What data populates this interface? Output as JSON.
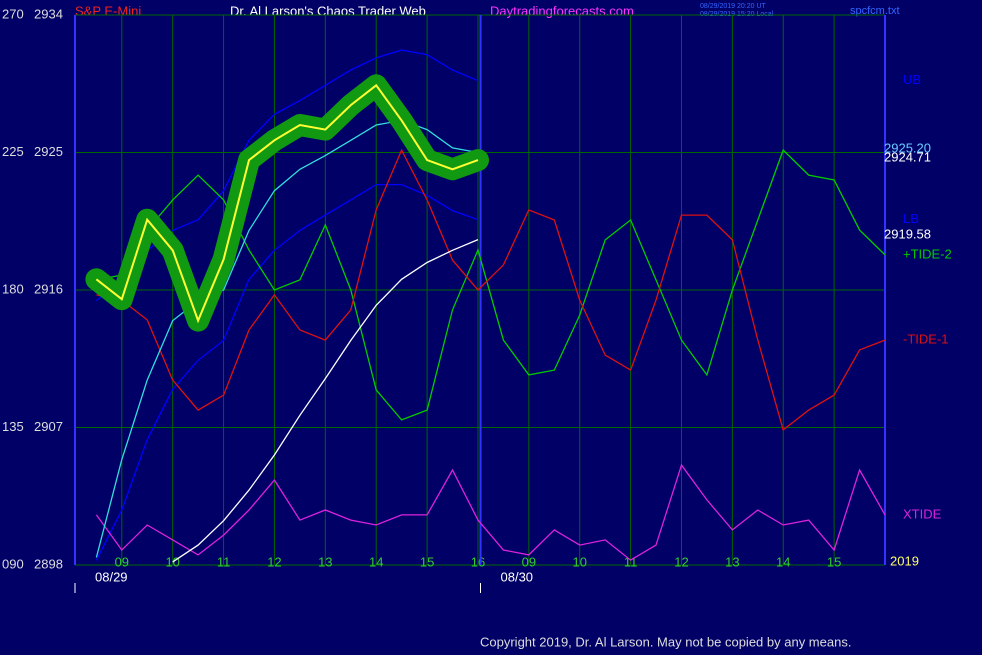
{
  "chart_data": {
    "type": "line",
    "title": "Dr. Al Larson's Chaos Trader Web",
    "subtitle": "S&P E-Mini",
    "site": "Daytradingforecasts.com",
    "timestamps": [
      "08/29/2019 20:20 UT",
      "08/29/2019 15:20 Local"
    ],
    "filename": "spcfcm.txt",
    "copyright": "Copyright 2019, Dr. Al Larson. May not be copied by any means.",
    "x": [
      -0.5,
      0,
      0.5,
      1,
      1.5,
      2,
      2.5,
      3,
      3.5,
      4,
      4.5,
      5,
      5.5,
      6,
      6.5,
      7,
      7.5,
      8,
      8.5,
      9,
      9.5,
      10,
      10.5,
      11,
      11.5,
      12,
      12.5,
      13,
      13.5,
      14,
      14.5,
      15
    ],
    "xlim": [
      -0.92,
      15
    ],
    "xticks": [
      {
        "value": 0,
        "label": "09"
      },
      {
        "value": 1,
        "label": "10"
      },
      {
        "value": 2,
        "label": "11"
      },
      {
        "value": 3,
        "label": "12"
      },
      {
        "value": 4,
        "label": "13"
      },
      {
        "value": 5,
        "label": "14"
      },
      {
        "value": 6,
        "label": "15"
      },
      {
        "value": 7,
        "label": "16"
      },
      {
        "value": 8,
        "label": "09"
      },
      {
        "value": 9,
        "label": "10"
      },
      {
        "value": 10,
        "label": "11"
      },
      {
        "value": 11,
        "label": "12"
      },
      {
        "value": 12,
        "label": "13"
      },
      {
        "value": 13,
        "label": "14"
      },
      {
        "value": 14,
        "label": "15"
      }
    ],
    "x_dates": [
      {
        "value": -0.92,
        "label": "08/29"
      },
      {
        "value": 7.05,
        "label": "08/30"
      }
    ],
    "ylim": [
      2898,
      2934
    ],
    "yticks": [
      2934,
      2925,
      2916,
      2907,
      2898
    ],
    "y2lim": [
      90,
      270
    ],
    "y2ticks": [
      270,
      225,
      180,
      135,
      {
        "value": 90,
        "label": "090"
      }
    ],
    "grid": true,
    "series": [
      {
        "color": "#0000ff",
        "name": "UB",
        "values": [
          2915.3,
          2916.7,
          2918.6,
          2919.9,
          2920.6,
          2922.5,
          2925.8,
          2927.5,
          2928.4,
          2929.4,
          2930.4,
          2931.2,
          2931.7,
          2931.4,
          2930.4,
          2929.7,
          null,
          null,
          null,
          null,
          null,
          null,
          null,
          null,
          null,
          null,
          null,
          null,
          null,
          null,
          null,
          null
        ]
      },
      {
        "color": "#0000ff",
        "name": "LB",
        "values": [
          2898.3,
          2901.6,
          2906.2,
          2909.5,
          2911.4,
          2912.7,
          2916.7,
          2918.6,
          2919.9,
          2920.9,
          2921.9,
          2922.9,
          2922.9,
          2922.2,
          2921.2,
          2920.6,
          null,
          null,
          null,
          null,
          null,
          null,
          null,
          null,
          null,
          null,
          null,
          null,
          null,
          null,
          null,
          null
        ]
      },
      {
        "color": "#00cc00",
        "name": "+TIDE-2",
        "axis": "y2",
        "values": [
          183.3,
          184.9,
          199.6,
          209.5,
          217.6,
          209.5,
          193.1,
          180,
          183.3,
          201.3,
          180,
          147.3,
          137.5,
          140.7,
          173.5,
          193.1,
          163.6,
          152.2,
          153.8,
          171.8,
          196.4,
          202.9,
          183.3,
          163.6,
          152.2,
          180,
          202.9,
          225.8,
          217.6,
          216,
          199.6,
          191.5
        ]
      },
      {
        "color": "#dd1111",
        "name": "-TIDE-1",
        "axis": "y2",
        "values": [
          178.4,
          176.7,
          170.2,
          150.5,
          140.7,
          145.6,
          166.9,
          178.4,
          166.9,
          163.6,
          173.5,
          206.2,
          225.8,
          209.5,
          189.8,
          180,
          188.2,
          206.2,
          202.9,
          176.7,
          158.7,
          153.8,
          176.7,
          204.5,
          204.5,
          196.4,
          163.6,
          134.2,
          140.7,
          145.6,
          160.4,
          163.6
        ]
      },
      {
        "color": "#dd22dd",
        "name": "XTIDE",
        "axis": "y2",
        "values": [
          106.4,
          94.9,
          103.1,
          98.2,
          93.3,
          99.8,
          108,
          117.8,
          104.7,
          108,
          104.7,
          103.1,
          106.4,
          106.4,
          121.1,
          104.7,
          94.9,
          93.3,
          101.5,
          96.5,
          98.2,
          91.6,
          96.5,
          122.7,
          111.3,
          101.5,
          108,
          103.1,
          104.7,
          94.9,
          121.1,
          106.4
        ]
      },
      {
        "color": "#ffffff",
        "values": [
          null,
          null,
          null,
          2898.2,
          2899.3,
          2900.9,
          2902.9,
          2905.2,
          2907.8,
          2910.2,
          2912.7,
          2915,
          2916.7,
          2917.8,
          2918.6,
          2919.3,
          null,
          null,
          null,
          null,
          null,
          null,
          null,
          null,
          null,
          null,
          null,
          null,
          null,
          null,
          null,
          null
        ]
      },
      {
        "color": "#33dddd",
        "values": [
          2898.5,
          2904.9,
          2910.1,
          2914,
          2915.3,
          2916,
          2919.9,
          2922.5,
          2923.9,
          2924.8,
          2925.8,
          2926.8,
          2927.1,
          2926.5,
          2925.3,
          2925,
          null,
          null,
          null,
          null,
          null,
          null,
          null,
          null,
          null,
          null,
          null,
          null,
          null,
          null,
          null,
          null
        ]
      },
      {
        "color": "#ffff33",
        "values": [
          2916.7,
          2915.4,
          2920.6,
          2918.6,
          2914,
          2918,
          2924.5,
          2925.8,
          2926.8,
          2926.5,
          2928.1,
          2929.4,
          2927.1,
          2924.5,
          2923.9,
          2924.5,
          null,
          null,
          null,
          null,
          null,
          null,
          null,
          null,
          null,
          null,
          null,
          null,
          null,
          null,
          null,
          null
        ]
      }
    ],
    "annotations": [
      {
        "text": "2925.20",
        "color": "#66ccff"
      },
      {
        "text": "2924.71",
        "color": "#ffffff"
      },
      {
        "text": "2919.58",
        "color": "#ffffff"
      },
      {
        "text": "2019",
        "color": "#ffff66"
      }
    ]
  }
}
